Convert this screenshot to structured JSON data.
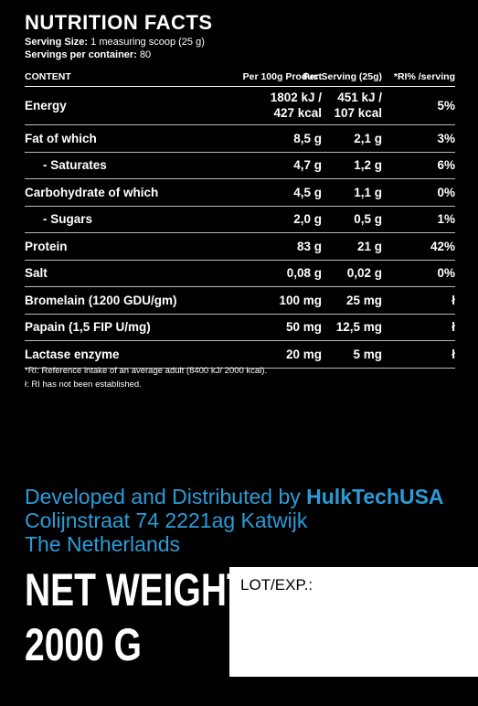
{
  "title": "NUTRITION FACTS",
  "serving_size": {
    "label": "Serving Size:",
    "value": "1 measuring scoop (25 g)"
  },
  "servings": {
    "label": "Servings per container:",
    "value": "80"
  },
  "table": {
    "header": [
      "CONTENT",
      "Per 100g Product",
      "Per Serving (25g)",
      "*RI% /serving"
    ],
    "rows": [
      [
        "Energy",
        [
          "1802 kJ /",
          "427 kcal"
        ],
        [
          "451 kJ /",
          "107 kcal"
        ],
        "5%"
      ],
      [
        "Fat of which",
        "8,5 g",
        "2,1 g",
        "3%"
      ],
      [
        "- Saturates",
        "4,7 g",
        "1,2 g",
        "6%"
      ],
      [
        "Carbohydrate of which",
        "4,5 g",
        "1,1 g",
        "0%"
      ],
      [
        "- Sugars",
        "2,0 g",
        "0,5 g",
        "1%"
      ],
      [
        "Protein",
        "83 g",
        "21 g",
        "42%"
      ],
      [
        "Salt",
        "0,08 g",
        "0,02 g",
        "0%"
      ],
      [
        "Bromelain (1200 GDU/gm)",
        "100 mg",
        "25 mg",
        "ł"
      ],
      [
        "Papain (1,5 FIP U/mg)",
        "50 mg",
        "12,5 mg",
        "ł"
      ],
      [
        "Lactase enzyme",
        "20 mg",
        "5 mg",
        "ł"
      ]
    ]
  },
  "footnotes": [
    "*RI: Reference intake of an average adult (8400 kJ/ 2000 kcal).",
    "ł: RI has not been established."
  ],
  "distributor": {
    "prefix": "Developed and Distributed by",
    "brand": "HulkTechUSA",
    "address_line1": "Colijnstraat 74 2221ag Katwijk",
    "address_line2": "The Netherlands"
  },
  "net_weight": {
    "label": "NET WEIGHT:",
    "value": "2000 G"
  },
  "lot_exp": "LOT/EXP.:"
}
